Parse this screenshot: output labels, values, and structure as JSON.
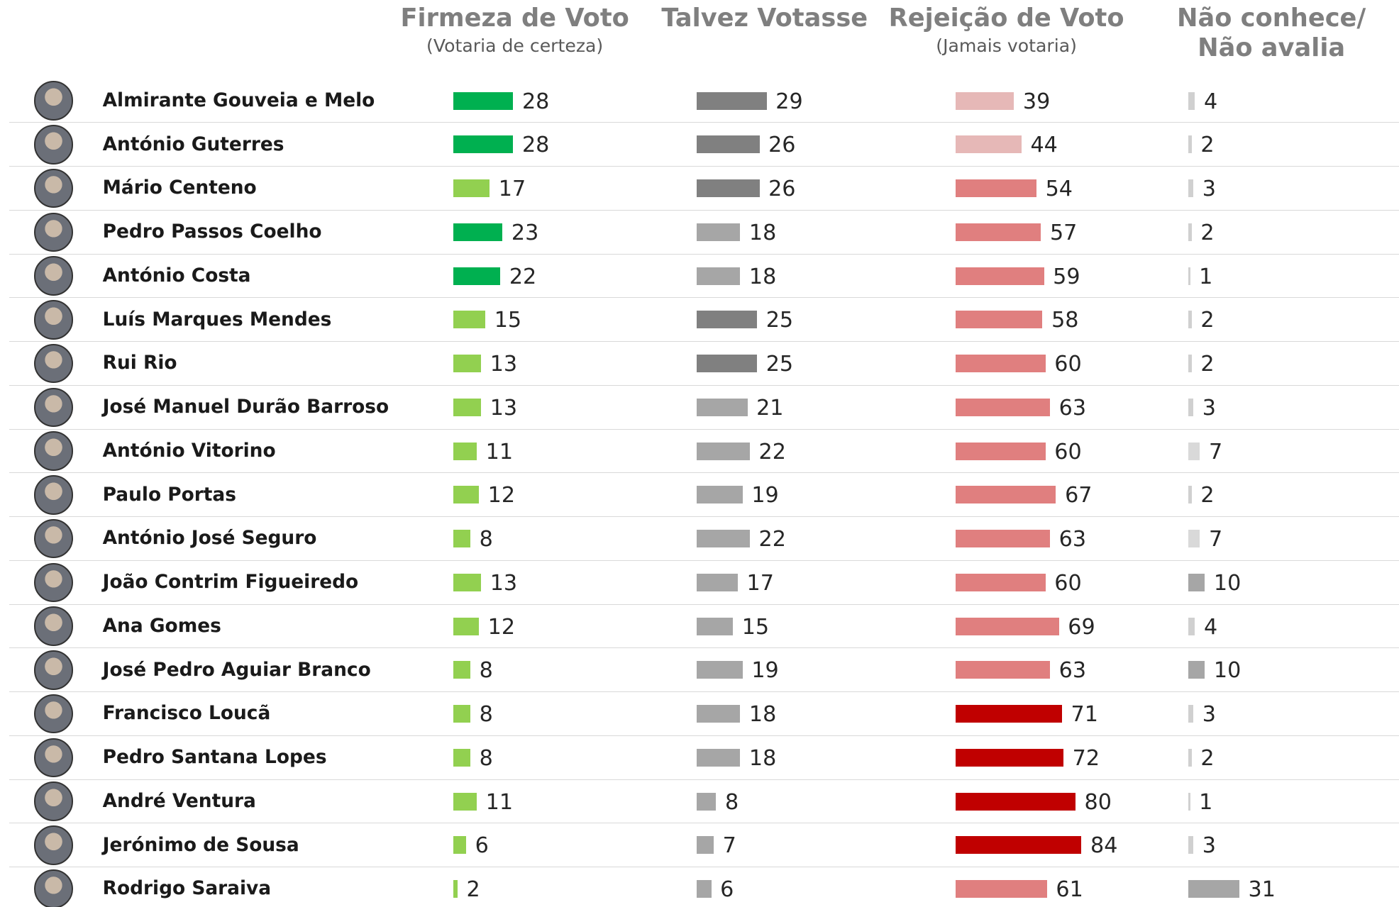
{
  "chart_data": {
    "type": "bar",
    "categories": [
      "Almirante Gouveia e Melo",
      "António Guterres",
      "Mário Centeno",
      "Pedro Passos Coelho",
      "António Costa",
      "Luís Marques Mendes",
      "Rui Rio",
      "José Manuel Durão Barroso",
      "António Vitorino",
      "Paulo Portas",
      "António José Seguro",
      "João Contrim Figueiredo",
      "Ana Gomes",
      "José Pedro Aguiar Branco",
      "Francisco Loucã",
      "Pedro Santana Lopes",
      "André Ventura",
      "Jerónimo de Sousa",
      "Rodrigo Saraiva"
    ],
    "series": [
      {
        "name": "Firmeza de Voto",
        "subtitle": "(Votaria de certeza)",
        "values": [
          28,
          28,
          17,
          23,
          22,
          15,
          13,
          13,
          11,
          12,
          8,
          13,
          12,
          8,
          8,
          8,
          11,
          6,
          2
        ],
        "colors": [
          "#00b050",
          "#00b050",
          "#92d050",
          "#00b050",
          "#00b050",
          "#92d050",
          "#92d050",
          "#92d050",
          "#92d050",
          "#92d050",
          "#92d050",
          "#92d050",
          "#92d050",
          "#92d050",
          "#92d050",
          "#92d050",
          "#92d050",
          "#92d050",
          "#92d050"
        ]
      },
      {
        "name": "Talvez Votasse",
        "values": [
          29,
          26,
          26,
          18,
          18,
          25,
          25,
          21,
          22,
          19,
          22,
          17,
          15,
          19,
          18,
          18,
          8,
          7,
          6
        ],
        "colors": [
          "#808080",
          "#808080",
          "#808080",
          "#a6a6a6",
          "#a6a6a6",
          "#808080",
          "#808080",
          "#a6a6a6",
          "#a6a6a6",
          "#a6a6a6",
          "#a6a6a6",
          "#a6a6a6",
          "#a6a6a6",
          "#a6a6a6",
          "#a6a6a6",
          "#a6a6a6",
          "#a6a6a6",
          "#a6a6a6",
          "#a6a6a6"
        ]
      },
      {
        "name": "Rejeição de Voto",
        "subtitle": "(Jamais votaria)",
        "values": [
          39,
          44,
          54,
          57,
          59,
          58,
          60,
          63,
          60,
          67,
          63,
          60,
          69,
          63,
          71,
          72,
          80,
          84,
          61
        ],
        "colors": [
          "#e6b8b7",
          "#e6b8b7",
          "#e07f7f",
          "#e07f7f",
          "#e07f7f",
          "#e07f7f",
          "#e07f7f",
          "#e07f7f",
          "#e07f7f",
          "#e07f7f",
          "#e07f7f",
          "#e07f7f",
          "#e07f7f",
          "#e07f7f",
          "#c00000",
          "#c00000",
          "#c00000",
          "#c00000",
          "#e07f7f"
        ]
      },
      {
        "name": "Não conhece/ Não avalia",
        "values": [
          4,
          2,
          3,
          2,
          1,
          2,
          2,
          3,
          7,
          2,
          7,
          10,
          4,
          10,
          3,
          2,
          1,
          3,
          31
        ],
        "colors": [
          "#d0d0d0",
          "#d0d0d0",
          "#d0d0d0",
          "#d0d0d0",
          "#d0d0d0",
          "#d0d0d0",
          "#d0d0d0",
          "#d0d0d0",
          "#d9d9d9",
          "#d0d0d0",
          "#d9d9d9",
          "#a6a6a6",
          "#d0d0d0",
          "#a6a6a6",
          "#d0d0d0",
          "#d0d0d0",
          "#d0d0d0",
          "#d0d0d0",
          "#a6a6a6"
        ]
      }
    ]
  }
}
